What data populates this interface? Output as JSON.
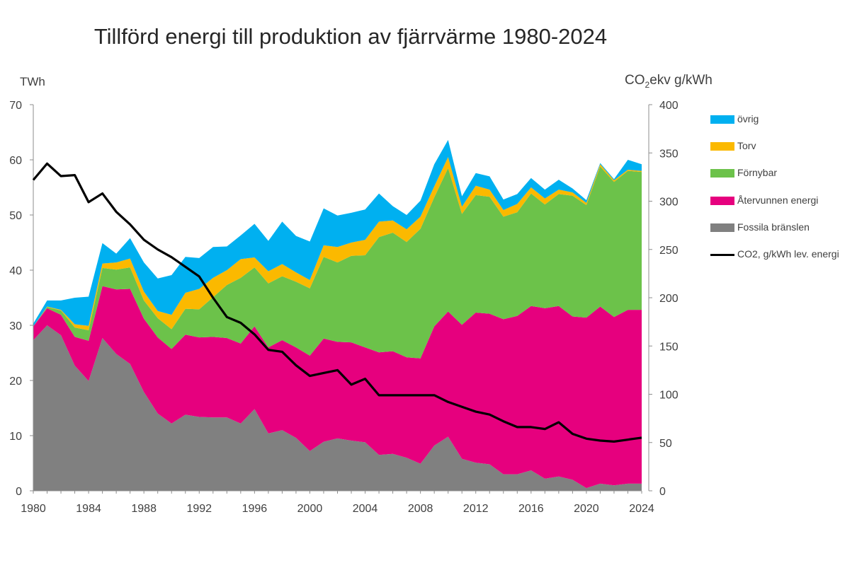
{
  "chart_data": {
    "type": "area",
    "title": "Tillförd energi till produktion av fjärrvärme 1980-2024",
    "ylabel_left": "TWh",
    "ylabel_right_main": "CO",
    "ylabel_right_sub": "2",
    "ylabel_right_rest": "ekv  g/kWh",
    "ylim_left": [
      0,
      70
    ],
    "ylim_right": [
      0,
      400
    ],
    "yticks_left": [
      0,
      10,
      20,
      30,
      40,
      50,
      60,
      70
    ],
    "yticks_right": [
      0,
      50,
      100,
      150,
      200,
      250,
      300,
      350,
      400
    ],
    "xticks": [
      1980,
      1984,
      1988,
      1992,
      1996,
      2000,
      2004,
      2008,
      2012,
      2016,
      2020,
      2024
    ],
    "legend_position": "right",
    "x": [
      1980,
      1981,
      1982,
      1983,
      1984,
      1985,
      1986,
      1987,
      1988,
      1989,
      1990,
      1991,
      1992,
      1993,
      1994,
      1995,
      1996,
      1997,
      1998,
      1999,
      2000,
      2001,
      2002,
      2003,
      2004,
      2005,
      2006,
      2007,
      2008,
      2009,
      2010,
      2011,
      2012,
      2013,
      2014,
      2015,
      2016,
      2017,
      2018,
      2019,
      2020,
      2021,
      2022,
      2023,
      2024
    ],
    "stacked_series": [
      {
        "name": "Fossila bränslen",
        "color": "#808080",
        "values": [
          27.3,
          30.0,
          28.2,
          22.7,
          19.9,
          27.7,
          24.8,
          23.0,
          17.9,
          14.0,
          12.2,
          13.8,
          13.4,
          13.3,
          13.3,
          12.2,
          14.8,
          10.4,
          11.0,
          9.6,
          7.2,
          8.9,
          9.5,
          9.1,
          8.8,
          6.5,
          6.7,
          6.0,
          4.9,
          8.2,
          9.8,
          5.8,
          5.1,
          4.8,
          3.0,
          3.0,
          3.7,
          2.2,
          2.6,
          2.0,
          0.5,
          1.3,
          1.0,
          1.3,
          1.3
        ]
      },
      {
        "name": "Återvunnen energi",
        "color": "#e6007e",
        "values": [
          2.5,
          3.1,
          3.7,
          5.2,
          7.3,
          9.4,
          11.7,
          13.6,
          13.3,
          13.8,
          13.5,
          14.5,
          14.4,
          14.6,
          14.4,
          14.5,
          15.0,
          15.6,
          16.3,
          16.4,
          17.3,
          18.7,
          17.5,
          17.8,
          17.2,
          18.6,
          18.6,
          18.2,
          19.1,
          21.6,
          22.7,
          24.3,
          27.2,
          27.3,
          28.1,
          28.7,
          29.8,
          30.9,
          30.9,
          29.6,
          30.9,
          32.1,
          30.5,
          31.5,
          31.5
        ]
      },
      {
        "name": "Förnybar",
        "color": "#6cc24a",
        "values": [
          0.0,
          0.2,
          0.8,
          1.7,
          1.9,
          3.3,
          3.6,
          3.9,
          3.3,
          3.5,
          3.6,
          4.7,
          5.1,
          7.2,
          9.6,
          11.9,
          10.7,
          11.6,
          11.6,
          11.9,
          12.2,
          14.8,
          14.4,
          15.7,
          16.7,
          20.9,
          21.5,
          20.9,
          23.5,
          23.4,
          26.0,
          20.1,
          21.3,
          21.2,
          18.6,
          18.8,
          20.4,
          18.8,
          20.3,
          21.9,
          20.4,
          25.4,
          24.5,
          25.2,
          25.0
        ]
      },
      {
        "name": "Torv",
        "color": "#fbb900",
        "values": [
          0.0,
          0.1,
          0.1,
          0.6,
          0.8,
          0.8,
          1.3,
          1.6,
          1.6,
          1.3,
          2.6,
          2.9,
          3.7,
          3.5,
          2.7,
          3.4,
          1.8,
          2.2,
          2.2,
          1.7,
          1.5,
          2.1,
          2.8,
          2.4,
          2.8,
          2.8,
          2.2,
          2.3,
          2.2,
          2.0,
          2.0,
          1.3,
          1.7,
          1.3,
          1.2,
          1.5,
          1.1,
          1.1,
          0.8,
          0.6,
          0.4,
          0.4,
          0.3,
          0.2,
          0.2
        ]
      },
      {
        "name": "övrig",
        "color": "#00b0f0",
        "values": [
          0.5,
          1.1,
          1.7,
          4.8,
          5.3,
          3.7,
          1.6,
          3.7,
          5.3,
          5.9,
          7.2,
          6.5,
          5.6,
          5.6,
          4.3,
          4.3,
          6.1,
          5.5,
          7.7,
          6.6,
          7.0,
          6.7,
          5.7,
          5.4,
          5.5,
          5.1,
          2.6,
          2.6,
          2.9,
          4.0,
          3.1,
          1.9,
          2.3,
          2.4,
          1.9,
          1.8,
          1.7,
          1.6,
          1.8,
          0.7,
          0.5,
          0.2,
          0.2,
          1.8,
          1.2
        ]
      }
    ],
    "line_series": {
      "name": "CO2, g/kWh lev. energi",
      "color": "#000000",
      "axis": "right",
      "values": [
        322,
        339,
        326,
        327,
        299,
        308,
        289,
        276,
        260,
        250,
        242,
        232,
        222,
        200,
        180,
        174,
        162,
        146,
        144,
        130,
        119,
        122,
        125,
        110,
        116,
        99,
        99,
        99,
        99,
        99,
        92,
        87,
        82,
        79,
        72,
        66,
        66,
        64,
        71,
        59,
        54,
        52,
        51,
        53,
        55
      ]
    }
  },
  "legend": [
    {
      "label": "övrig",
      "color": "#00b0f0",
      "kind": "area"
    },
    {
      "label": "Torv",
      "color": "#fbb900",
      "kind": "area"
    },
    {
      "label": "Förnybar",
      "color": "#6cc24a",
      "kind": "area"
    },
    {
      "label": "Återvunnen energi",
      "color": "#e6007e",
      "kind": "area"
    },
    {
      "label": "Fossila bränslen",
      "color": "#808080",
      "kind": "area"
    },
    {
      "label": "CO2, g/kWh lev. energi",
      "color": "#000000",
      "kind": "line"
    }
  ]
}
